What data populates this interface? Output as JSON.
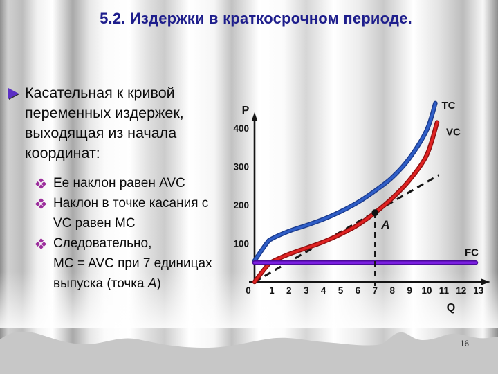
{
  "slide": {
    "title": "5.2. Издержки в краткосрочном периоде.",
    "page_number": "16"
  },
  "bullets": {
    "main_text": "Касательная к кривой\nпеременных издержек,\nвыходящая из начала\nкоординат:",
    "sub": [
      {
        "text": "Ее наклон равен AVC"
      },
      {
        "text": "Наклон в точке касания с\nVC равен MC"
      },
      {
        "pre": "Следовательно,\nMC = AVC при 7 единицах\nвыпуска (точка ",
        "em": "А",
        "post": ")"
      }
    ]
  },
  "chart_data": {
    "type": "line",
    "title": "",
    "xlabel": "Q",
    "ylabel": "P",
    "x_ticks": [
      0,
      1,
      2,
      3,
      4,
      5,
      6,
      7,
      8,
      9,
      10,
      11,
      12,
      13
    ],
    "y_ticks": [
      100,
      200,
      300,
      400
    ],
    "xlim": [
      0,
      13.5
    ],
    "ylim": [
      0,
      470
    ],
    "grid": false,
    "legend_position": "curve-end-labels",
    "series": [
      {
        "name": "TC",
        "color": "#2f5ec8",
        "edge_color": "#1c3c8e",
        "smooth": true,
        "points": [
          [
            0,
            55
          ],
          [
            0.7,
            100
          ],
          [
            1,
            112
          ],
          [
            2,
            132
          ],
          [
            3,
            147
          ],
          [
            4,
            163
          ],
          [
            5,
            183
          ],
          [
            6,
            207
          ],
          [
            7,
            237
          ],
          [
            8,
            272
          ],
          [
            9,
            322
          ],
          [
            10,
            395
          ],
          [
            10.5,
            465
          ]
        ]
      },
      {
        "name": "VC",
        "color": "#e02222",
        "edge_color": "#8f1010",
        "smooth": true,
        "points": [
          [
            0,
            0
          ],
          [
            0.7,
            40
          ],
          [
            1,
            52
          ],
          [
            2,
            72
          ],
          [
            3,
            88
          ],
          [
            4,
            104
          ],
          [
            5,
            124
          ],
          [
            6,
            148
          ],
          [
            7,
            180
          ],
          [
            8,
            218
          ],
          [
            9,
            265
          ],
          [
            10,
            330
          ],
          [
            10.6,
            415
          ]
        ]
      },
      {
        "name": "FC",
        "color": "#7a1fe0",
        "edge_color": "#4a0a9a",
        "smooth": false,
        "points": [
          [
            0,
            50
          ],
          [
            12.85,
            50
          ]
        ]
      }
    ],
    "annotations": {
      "tangent_line": {
        "style": "dashed",
        "from": [
          0,
          0
        ],
        "to": [
          10.7,
          278
        ]
      },
      "drop_line": {
        "style": "dashed",
        "x": 7,
        "y": 180
      },
      "point_marker": {
        "x": 7,
        "y": 180,
        "label": "A"
      }
    }
  },
  "colors": {
    "title": "#1e1e8c",
    "arrow_bullet": "#5b2fc4",
    "diamond_bullet": "#9c2d9c",
    "axis": "#141414",
    "tc_curve": "#2f5ec8",
    "vc_curve": "#e02222",
    "fc_line": "#7a1fe0"
  }
}
